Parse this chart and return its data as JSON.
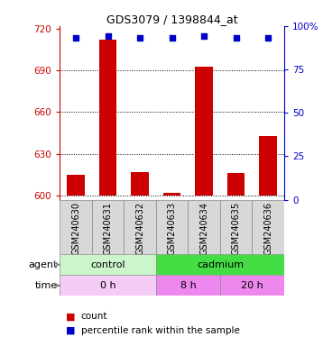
{
  "title": "GDS3079 / 1398844_at",
  "samples": [
    "GSM240630",
    "GSM240631",
    "GSM240632",
    "GSM240633",
    "GSM240634",
    "GSM240635",
    "GSM240636"
  ],
  "counts": [
    615,
    712,
    617,
    602,
    693,
    616,
    643
  ],
  "percentiles": [
    93,
    94,
    93,
    93,
    94,
    93,
    93
  ],
  "ylim_left": [
    597,
    722
  ],
  "yticks_left": [
    600,
    630,
    660,
    690,
    720
  ],
  "ylim_right": [
    0,
    100
  ],
  "yticks_right": [
    0,
    25,
    50,
    75,
    100
  ],
  "bar_color": "#cc0000",
  "dot_color": "#0000cc",
  "bar_bottom": 600,
  "agent_groups": [
    {
      "label": "control",
      "start": 0,
      "end": 3,
      "color": "#ccf5cc"
    },
    {
      "label": "cadmium",
      "start": 3,
      "end": 7,
      "color": "#44dd44"
    }
  ],
  "time_groups": [
    {
      "label": "0 h",
      "start": 0,
      "end": 3,
      "color": "#f5ccf5"
    },
    {
      "label": "8 h",
      "start": 3,
      "end": 5,
      "color": "#ee88ee"
    },
    {
      "label": "20 h",
      "start": 5,
      "end": 7,
      "color": "#ee88ee"
    }
  ],
  "label_bg": "#d8d8d8",
  "legend_count_color": "#cc0000",
  "legend_pct_color": "#0000cc"
}
